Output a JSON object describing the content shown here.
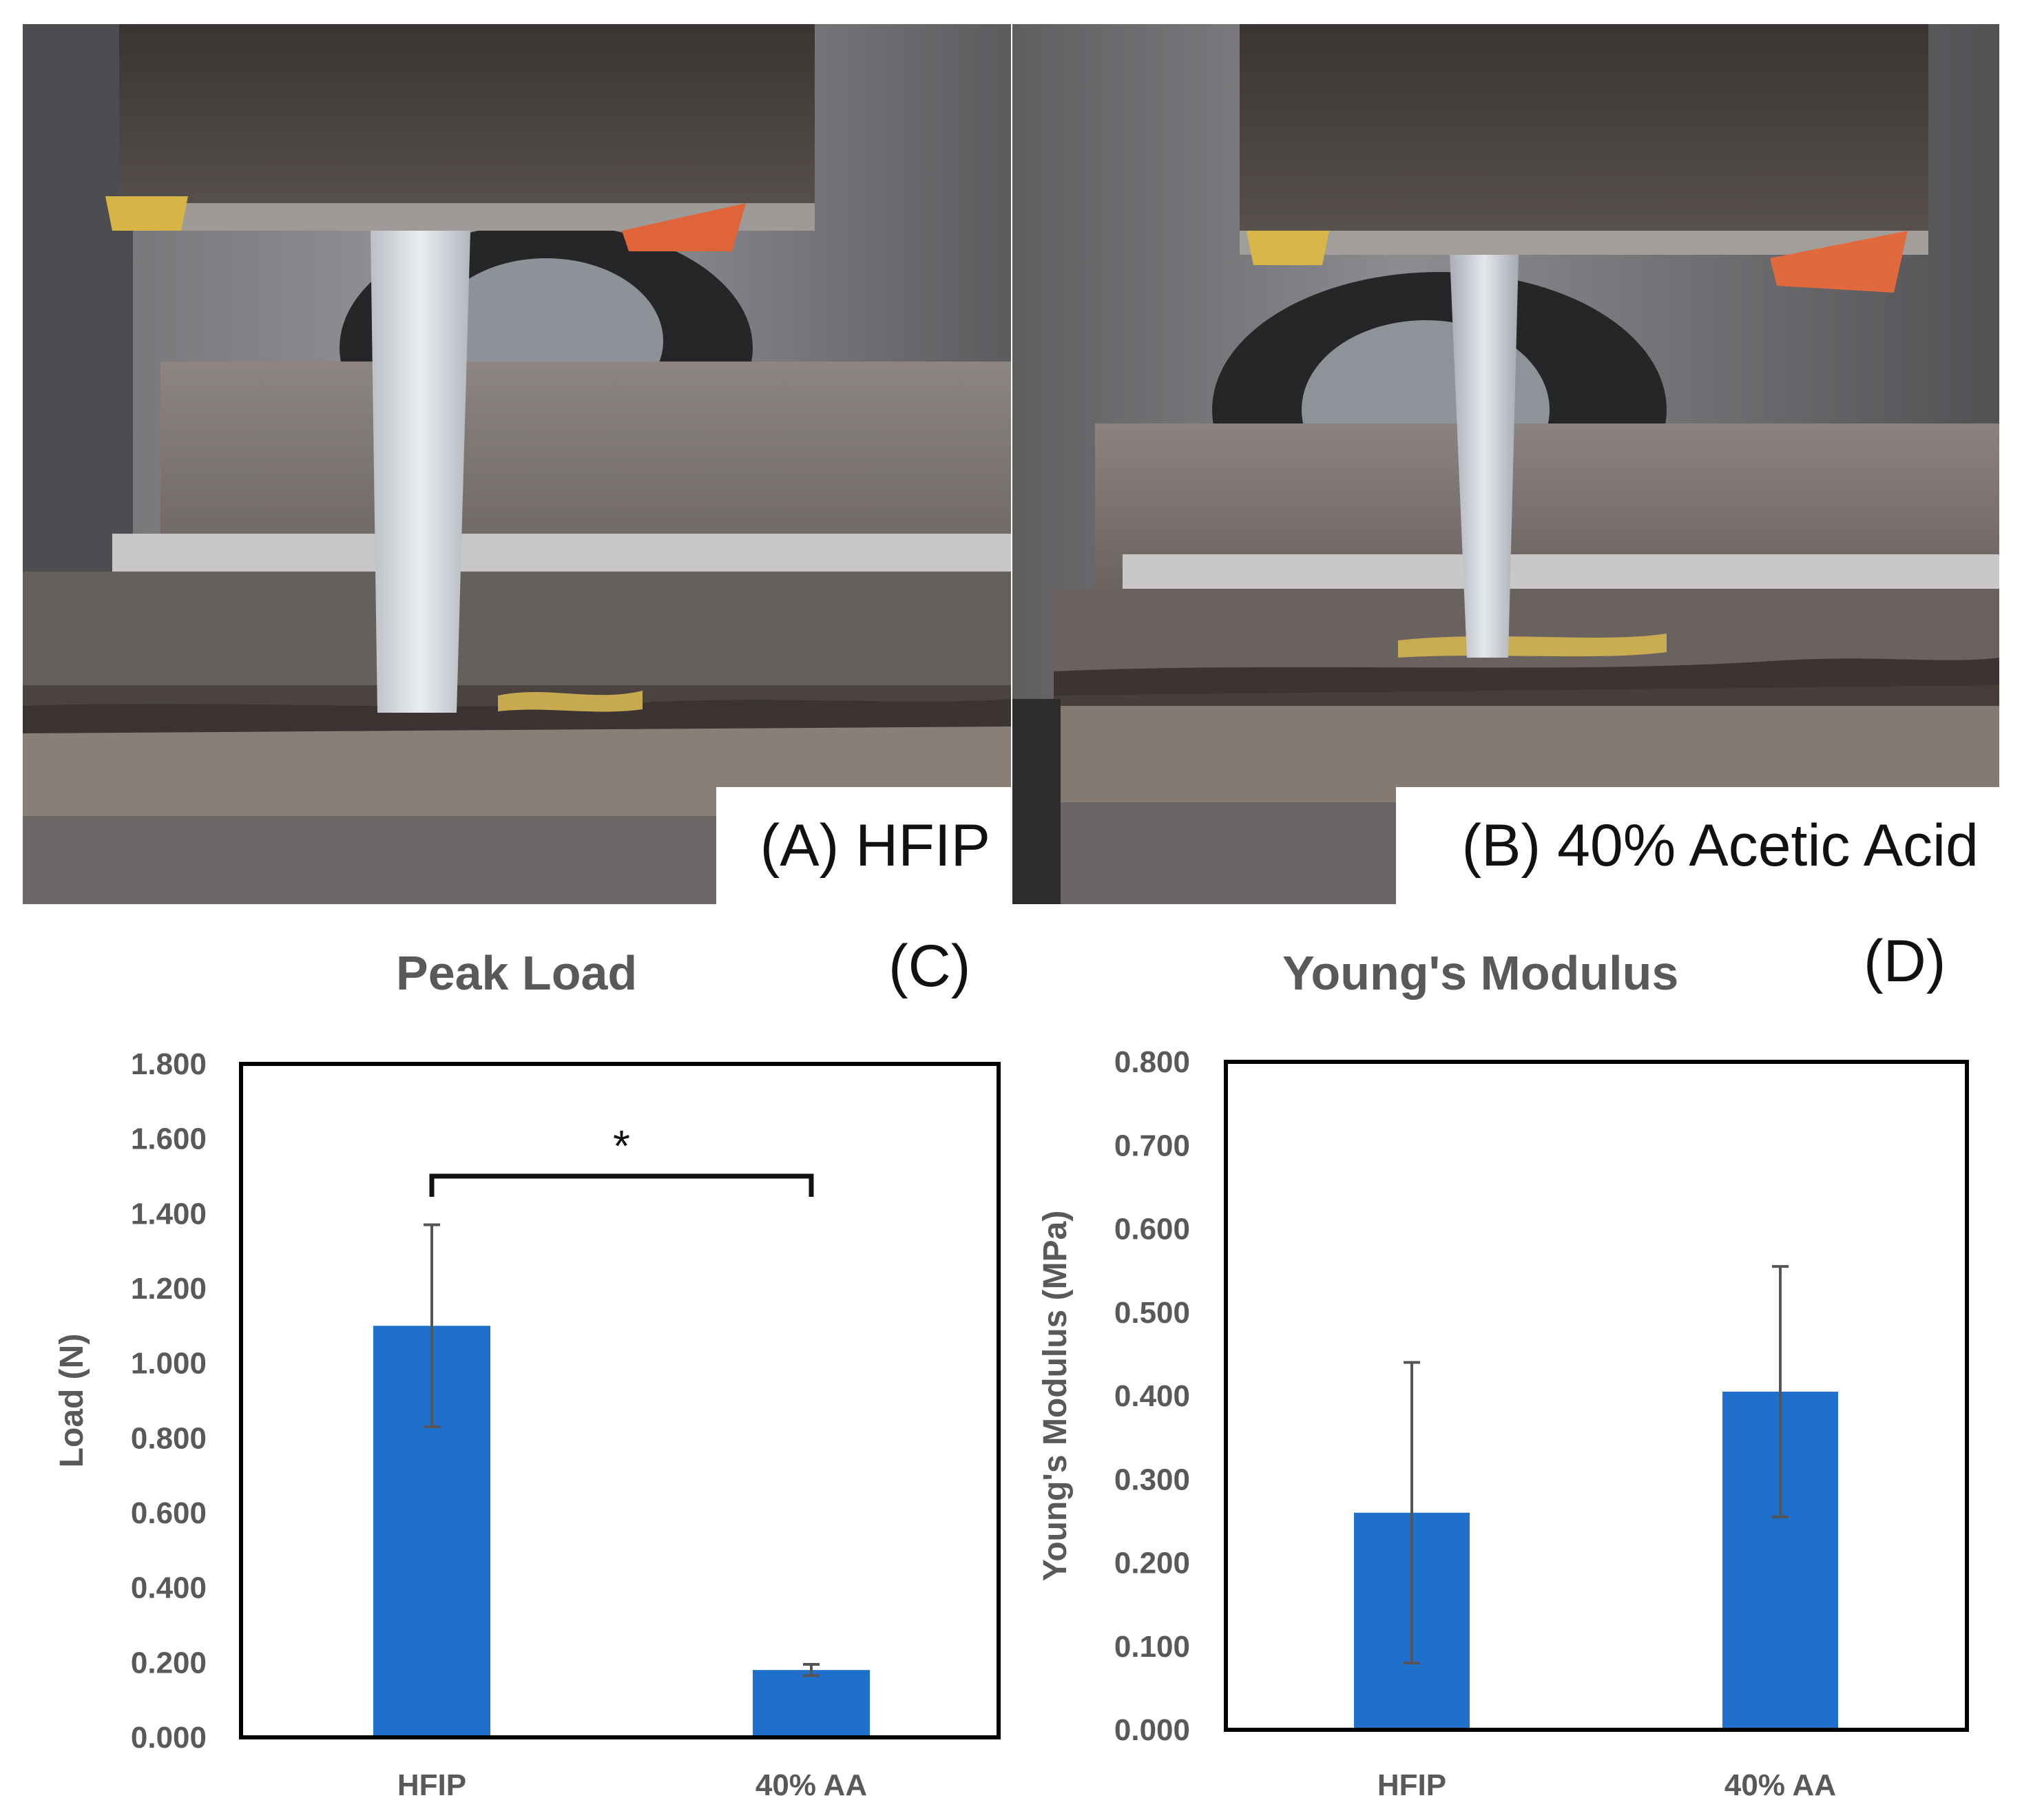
{
  "colors": {
    "bar": "#1F6FCC",
    "error_bar": "#555555",
    "axis_text": "#595959",
    "frame": "#000000"
  },
  "photos": [
    {
      "caption": "(A) HFIP"
    },
    {
      "caption": "(B) 40% Acetic Acid"
    }
  ],
  "chart_data": [
    {
      "type": "bar",
      "panel": "(C)",
      "title": "Peak Load",
      "xlabel": "",
      "ylabel": "Load (N)",
      "ylim": [
        0,
        1.8
      ],
      "yticks": [
        "0.000",
        "0.200",
        "0.400",
        "0.600",
        "0.800",
        "1.000",
        "1.200",
        "1.400",
        "1.600",
        "1.800"
      ],
      "grid": false,
      "categories": [
        "HFIP",
        "40% AA"
      ],
      "values": [
        1.1,
        0.18
      ],
      "error": [
        0.27,
        0.015
      ],
      "significance": {
        "between": [
          0,
          1
        ],
        "label": "*",
        "y": 1.5
      }
    },
    {
      "type": "bar",
      "panel": "(D)",
      "title": "Young's Modulus",
      "xlabel": "",
      "ylabel": "Young's Modulus (MPa)",
      "ylim": [
        0,
        0.8
      ],
      "yticks": [
        "0.000",
        "0.100",
        "0.200",
        "0.300",
        "0.400",
        "0.500",
        "0.600",
        "0.700",
        "0.800"
      ],
      "grid": false,
      "categories": [
        "HFIP",
        "40% AA"
      ],
      "values": [
        0.26,
        0.405
      ],
      "error": [
        0.18,
        0.15
      ]
    }
  ]
}
